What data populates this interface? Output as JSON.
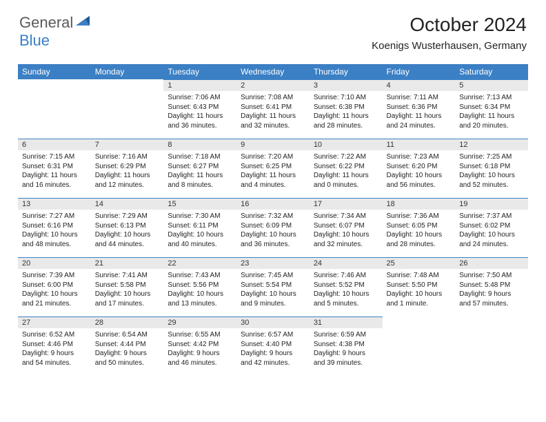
{
  "logo": {
    "text1": "General",
    "text2": "Blue"
  },
  "title": "October 2024",
  "location": "Koenigs Wusterhausen, Germany",
  "colors": {
    "header_bg": "#3b7fc4",
    "header_text": "#ffffff",
    "daynum_bg": "#e9e9e9",
    "daynum_border": "#3b7fc4"
  },
  "weekdays": [
    "Sunday",
    "Monday",
    "Tuesday",
    "Wednesday",
    "Thursday",
    "Friday",
    "Saturday"
  ],
  "weeks": [
    [
      null,
      null,
      {
        "n": "1",
        "sr": "7:06 AM",
        "ss": "6:43 PM",
        "dl": "11 hours and 36 minutes."
      },
      {
        "n": "2",
        "sr": "7:08 AM",
        "ss": "6:41 PM",
        "dl": "11 hours and 32 minutes."
      },
      {
        "n": "3",
        "sr": "7:10 AM",
        "ss": "6:38 PM",
        "dl": "11 hours and 28 minutes."
      },
      {
        "n": "4",
        "sr": "7:11 AM",
        "ss": "6:36 PM",
        "dl": "11 hours and 24 minutes."
      },
      {
        "n": "5",
        "sr": "7:13 AM",
        "ss": "6:34 PM",
        "dl": "11 hours and 20 minutes."
      }
    ],
    [
      {
        "n": "6",
        "sr": "7:15 AM",
        "ss": "6:31 PM",
        "dl": "11 hours and 16 minutes."
      },
      {
        "n": "7",
        "sr": "7:16 AM",
        "ss": "6:29 PM",
        "dl": "11 hours and 12 minutes."
      },
      {
        "n": "8",
        "sr": "7:18 AM",
        "ss": "6:27 PM",
        "dl": "11 hours and 8 minutes."
      },
      {
        "n": "9",
        "sr": "7:20 AM",
        "ss": "6:25 PM",
        "dl": "11 hours and 4 minutes."
      },
      {
        "n": "10",
        "sr": "7:22 AM",
        "ss": "6:22 PM",
        "dl": "11 hours and 0 minutes."
      },
      {
        "n": "11",
        "sr": "7:23 AM",
        "ss": "6:20 PM",
        "dl": "10 hours and 56 minutes."
      },
      {
        "n": "12",
        "sr": "7:25 AM",
        "ss": "6:18 PM",
        "dl": "10 hours and 52 minutes."
      }
    ],
    [
      {
        "n": "13",
        "sr": "7:27 AM",
        "ss": "6:16 PM",
        "dl": "10 hours and 48 minutes."
      },
      {
        "n": "14",
        "sr": "7:29 AM",
        "ss": "6:13 PM",
        "dl": "10 hours and 44 minutes."
      },
      {
        "n": "15",
        "sr": "7:30 AM",
        "ss": "6:11 PM",
        "dl": "10 hours and 40 minutes."
      },
      {
        "n": "16",
        "sr": "7:32 AM",
        "ss": "6:09 PM",
        "dl": "10 hours and 36 minutes."
      },
      {
        "n": "17",
        "sr": "7:34 AM",
        "ss": "6:07 PM",
        "dl": "10 hours and 32 minutes."
      },
      {
        "n": "18",
        "sr": "7:36 AM",
        "ss": "6:05 PM",
        "dl": "10 hours and 28 minutes."
      },
      {
        "n": "19",
        "sr": "7:37 AM",
        "ss": "6:02 PM",
        "dl": "10 hours and 24 minutes."
      }
    ],
    [
      {
        "n": "20",
        "sr": "7:39 AM",
        "ss": "6:00 PM",
        "dl": "10 hours and 21 minutes."
      },
      {
        "n": "21",
        "sr": "7:41 AM",
        "ss": "5:58 PM",
        "dl": "10 hours and 17 minutes."
      },
      {
        "n": "22",
        "sr": "7:43 AM",
        "ss": "5:56 PM",
        "dl": "10 hours and 13 minutes."
      },
      {
        "n": "23",
        "sr": "7:45 AM",
        "ss": "5:54 PM",
        "dl": "10 hours and 9 minutes."
      },
      {
        "n": "24",
        "sr": "7:46 AM",
        "ss": "5:52 PM",
        "dl": "10 hours and 5 minutes."
      },
      {
        "n": "25",
        "sr": "7:48 AM",
        "ss": "5:50 PM",
        "dl": "10 hours and 1 minute."
      },
      {
        "n": "26",
        "sr": "7:50 AM",
        "ss": "5:48 PM",
        "dl": "9 hours and 57 minutes."
      }
    ],
    [
      {
        "n": "27",
        "sr": "6:52 AM",
        "ss": "4:46 PM",
        "dl": "9 hours and 54 minutes."
      },
      {
        "n": "28",
        "sr": "6:54 AM",
        "ss": "4:44 PM",
        "dl": "9 hours and 50 minutes."
      },
      {
        "n": "29",
        "sr": "6:55 AM",
        "ss": "4:42 PM",
        "dl": "9 hours and 46 minutes."
      },
      {
        "n": "30",
        "sr": "6:57 AM",
        "ss": "4:40 PM",
        "dl": "9 hours and 42 minutes."
      },
      {
        "n": "31",
        "sr": "6:59 AM",
        "ss": "4:38 PM",
        "dl": "9 hours and 39 minutes."
      },
      null,
      null
    ]
  ],
  "labels": {
    "sunrise": "Sunrise:",
    "sunset": "Sunset:",
    "daylight": "Daylight:"
  }
}
